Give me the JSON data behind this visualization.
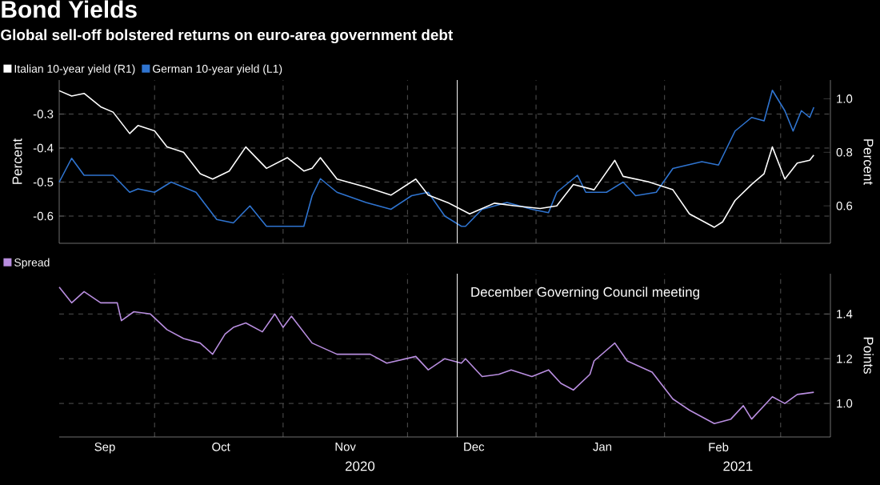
{
  "chart_data": [
    {
      "type": "line",
      "title": "Bond Yields",
      "subtitle": "Global sell-off bolstered returns on euro-area government debt",
      "ylabel": "Percent",
      "y2label": "Percent",
      "xlim": [
        "2020-09-08",
        "2021-03-13"
      ],
      "xticks": [
        {
          "value": "2020-10-01",
          "label": null
        },
        {
          "value": "2020-11-01",
          "label": null
        },
        {
          "value": "2020-12-01",
          "label": null
        },
        {
          "value": "2021-01-01",
          "label": null
        },
        {
          "value": "2021-02-01",
          "label": null
        },
        {
          "value": "2021-03-01",
          "label": null
        }
      ],
      "ylim": [
        -0.68,
        -0.2
      ],
      "yticks": [
        -0.6,
        -0.5,
        -0.4,
        -0.3
      ],
      "y2lim": [
        0.46,
        1.07
      ],
      "y2ticks": [
        0.6,
        0.8,
        {
          "value": 1,
          "label": "1.0"
        }
      ],
      "tick_labels": "y",
      "grid": true,
      "legend": "top left",
      "ref_lines": [
        {
          "axis": "x",
          "value": "2020-12-13",
          "color": "#ffffff"
        }
      ],
      "series": [
        {
          "name": "Italian 10-year yield (R1)",
          "color": "#ffffff",
          "axis": "y2",
          "x": [
            "2020-09-08",
            "2020-09-11",
            "2020-09-14",
            "2020-09-18",
            "2020-09-21",
            "2020-09-25",
            "2020-09-27",
            "2020-10-01",
            "2020-10-04",
            "2020-10-08",
            "2020-10-12",
            "2020-10-15",
            "2020-10-19",
            "2020-10-23",
            "2020-10-28",
            "2020-11-02",
            "2020-11-06",
            "2020-11-08",
            "2020-11-10",
            "2020-11-14",
            "2020-11-21",
            "2020-11-27",
            "2020-12-03",
            "2020-12-06",
            "2020-12-11",
            "2020-12-16",
            "2020-12-22",
            "2020-12-27",
            "2021-01-02",
            "2021-01-06",
            "2021-01-10",
            "2021-01-15",
            "2021-01-20",
            "2021-01-22",
            "2021-01-28",
            "2021-02-03",
            "2021-02-07",
            "2021-02-13",
            "2021-02-15",
            "2021-02-18",
            "2021-02-22",
            "2021-02-25",
            "2021-02-27",
            "2021-03-02",
            "2021-03-05",
            "2021-03-08",
            "2021-03-09"
          ],
          "values": [
            1.03,
            1.01,
            1.02,
            0.97,
            0.95,
            0.87,
            0.9,
            0.88,
            0.82,
            0.8,
            0.72,
            0.7,
            0.73,
            0.82,
            0.74,
            0.78,
            0.73,
            0.74,
            0.78,
            0.7,
            0.67,
            0.64,
            0.7,
            0.64,
            0.61,
            0.57,
            0.61,
            0.6,
            0.59,
            0.6,
            0.68,
            0.66,
            0.77,
            0.71,
            0.69,
            0.66,
            0.57,
            0.52,
            0.54,
            0.62,
            0.68,
            0.72,
            0.82,
            0.7,
            0.76,
            0.77,
            0.79
          ]
        },
        {
          "name": "German 10-year yield (L1)",
          "color": "#2f74d0",
          "x": [
            "2020-09-08",
            "2020-09-11",
            "2020-09-14",
            "2020-09-21",
            "2020-09-25",
            "2020-09-27",
            "2020-10-01",
            "2020-10-05",
            "2020-10-11",
            "2020-10-16",
            "2020-10-20",
            "2020-10-24",
            "2020-10-28",
            "2020-11-02",
            "2020-11-06",
            "2020-11-08",
            "2020-11-10",
            "2020-11-14",
            "2020-11-21",
            "2020-11-27",
            "2020-12-02",
            "2020-12-06",
            "2020-12-10",
            "2020-12-14",
            "2020-12-15",
            "2020-12-19",
            "2020-12-25",
            "2020-12-31",
            "2021-01-04",
            "2021-01-06",
            "2021-01-11",
            "2021-01-13",
            "2021-01-18",
            "2021-01-22",
            "2021-01-25",
            "2021-01-30",
            "2021-02-03",
            "2021-02-10",
            "2021-02-14",
            "2021-02-18",
            "2021-02-22",
            "2021-02-25",
            "2021-02-27",
            "2021-03-02",
            "2021-03-04",
            "2021-03-06",
            "2021-03-08",
            "2021-03-09"
          ],
          "values": [
            -0.5,
            -0.43,
            -0.48,
            -0.48,
            -0.53,
            -0.52,
            -0.53,
            -0.5,
            -0.53,
            -0.61,
            -0.62,
            -0.57,
            -0.63,
            -0.63,
            -0.63,
            -0.54,
            -0.49,
            -0.53,
            -0.56,
            -0.58,
            -0.54,
            -0.53,
            -0.6,
            -0.63,
            -0.63,
            -0.58,
            -0.56,
            -0.58,
            -0.59,
            -0.53,
            -0.48,
            -0.53,
            -0.53,
            -0.5,
            -0.54,
            -0.53,
            -0.46,
            -0.44,
            -0.45,
            -0.35,
            -0.31,
            -0.32,
            -0.23,
            -0.29,
            -0.35,
            -0.29,
            -0.31,
            -0.28
          ]
        }
      ]
    },
    {
      "type": "line",
      "y2label": "Points",
      "xlim": [
        "2020-09-08",
        "2021-03-13"
      ],
      "xticks": [
        {
          "value": "2020-09-19",
          "label": "Sep"
        },
        {
          "value": "2020-10-01",
          "label": null
        },
        {
          "value": "2020-10-17",
          "label": "Oct"
        },
        {
          "value": "2020-11-01",
          "label": null
        },
        {
          "value": "2020-11-16",
          "label": "Nov"
        },
        {
          "value": "2020-12-01",
          "label": null
        },
        {
          "value": "2020-12-17",
          "label": "Dec"
        },
        {
          "value": "2021-01-01",
          "label": null
        },
        {
          "value": "2021-01-17",
          "label": "Jan"
        },
        {
          "value": "2021-02-01",
          "label": null
        },
        {
          "value": "2021-02-14",
          "label": "Feb"
        },
        {
          "value": "2021-03-01",
          "label": null
        }
      ],
      "y2lim": [
        0.85,
        1.58
      ],
      "y2ticks": [
        {
          "value": 1,
          "label": "1.0"
        },
        1.2,
        1.4
      ],
      "grid": true,
      "legend": "top left",
      "ref_lines": [
        {
          "axis": "x",
          "value": "2020-12-13",
          "label": "December Governing Council meeting",
          "color": "#ffffff"
        }
      ],
      "annotations": [
        "2020",
        "2021"
      ],
      "series": [
        {
          "name": "Spread",
          "color": "#b98ee0",
          "axis": "y2",
          "x": [
            "2020-09-08",
            "2020-09-11",
            "2020-09-14",
            "2020-09-18",
            "2020-09-22",
            "2020-09-23",
            "2020-09-26",
            "2020-09-30",
            "2020-10-04",
            "2020-10-08",
            "2020-10-12",
            "2020-10-15",
            "2020-10-18",
            "2020-10-20",
            "2020-10-23",
            "2020-10-27",
            "2020-10-30",
            "2020-11-01",
            "2020-11-03",
            "2020-11-08",
            "2020-11-14",
            "2020-11-22",
            "2020-11-26",
            "2020-12-03",
            "2020-12-06",
            "2020-12-10",
            "2020-12-14",
            "2020-12-15",
            "2020-12-19",
            "2020-12-23",
            "2020-12-26",
            "2020-12-31",
            "2021-01-04",
            "2021-01-07",
            "2021-01-10",
            "2021-01-14",
            "2021-01-15",
            "2021-01-20",
            "2021-01-23",
            "2021-01-29",
            "2021-02-03",
            "2021-02-07",
            "2021-02-13",
            "2021-02-17",
            "2021-02-20",
            "2021-02-22",
            "2021-02-27",
            "2021-03-02",
            "2021-03-05",
            "2021-03-09"
          ],
          "values": [
            1.52,
            1.45,
            1.5,
            1.45,
            1.45,
            1.37,
            1.41,
            1.4,
            1.33,
            1.29,
            1.27,
            1.22,
            1.31,
            1.34,
            1.36,
            1.32,
            1.4,
            1.34,
            1.39,
            1.27,
            1.22,
            1.22,
            1.18,
            1.21,
            1.15,
            1.2,
            1.18,
            1.2,
            1.12,
            1.13,
            1.15,
            1.12,
            1.15,
            1.09,
            1.06,
            1.13,
            1.19,
            1.27,
            1.19,
            1.14,
            1.02,
            0.97,
            0.91,
            0.93,
            0.99,
            0.93,
            1.03,
            1.0,
            1.04,
            1.05
          ]
        }
      ]
    }
  ]
}
